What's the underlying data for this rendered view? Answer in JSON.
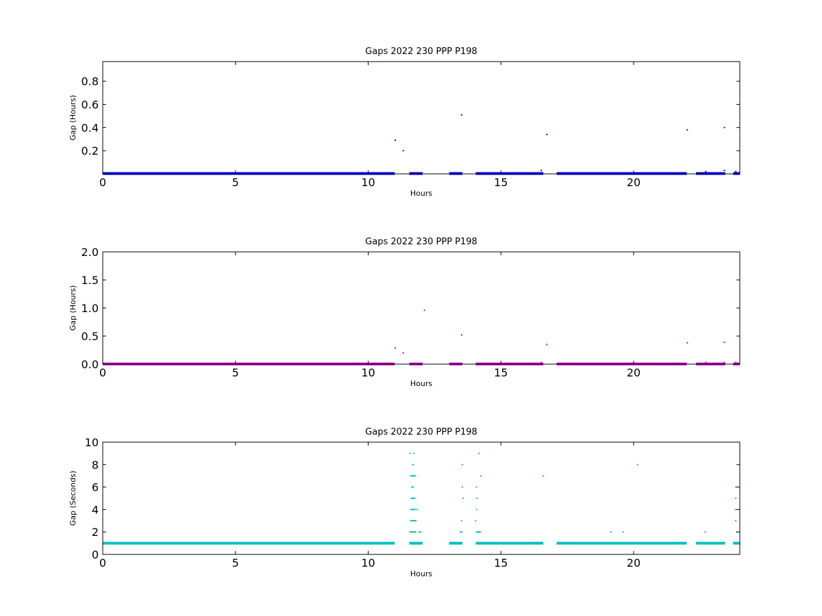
{
  "chart_data": [
    {
      "type": "scatter",
      "title": "Gaps 2022 230 PPP  P198",
      "xlabel": "Hours",
      "ylabel": "Gap (Hours)",
      "xlim": [
        0,
        24
      ],
      "ylim": [
        0,
        0.97
      ],
      "xticks": [
        0,
        5,
        10,
        15,
        20
      ],
      "yticks": [
        0.2,
        0.4,
        0.6,
        0.8
      ],
      "xtick_labels": [
        "0",
        "5",
        "10",
        "15",
        "20"
      ],
      "ytick_labels": [
        "0.2",
        "0.4",
        "0.6",
        "0.8"
      ],
      "grid": false,
      "series": [
        {
          "color": "#0000ff",
          "baseline_value": 0.003,
          "baseline_ranges": [
            [
              0,
              11.0
            ],
            [
              11.55,
              12.05
            ],
            [
              13.05,
              13.55
            ],
            [
              14.05,
              16.6
            ],
            [
              17.1,
              22.0
            ],
            [
              22.35,
              23.45
            ],
            [
              23.75,
              24.0
            ]
          ],
          "points": [
            [
              11.02,
              0.29
            ],
            [
              11.32,
              0.2
            ],
            [
              13.52,
              0.51
            ],
            [
              16.52,
              0.03
            ],
            [
              16.73,
              0.34
            ],
            [
              22.02,
              0.38
            ],
            [
              22.72,
              0.02
            ],
            [
              23.42,
              0.4
            ],
            [
              23.42,
              0.03
            ],
            [
              23.85,
              0.02
            ]
          ]
        }
      ]
    },
    {
      "type": "scatter",
      "title": "Gaps 2022 230 PPP  P198",
      "xlabel": "Hours",
      "ylabel": "Gap (Hours)",
      "xlim": [
        0,
        24
      ],
      "ylim": [
        0,
        2.0
      ],
      "xticks": [
        0,
        5,
        10,
        15,
        20
      ],
      "yticks": [
        0.0,
        0.5,
        1.0,
        1.5,
        2.0
      ],
      "xtick_labels": [
        "0",
        "5",
        "10",
        "15",
        "20"
      ],
      "ytick_labels": [
        "0.0",
        "0.5",
        "1.0",
        "1.5",
        "2.0"
      ],
      "grid": false,
      "series": [
        {
          "color": "#bf00bf",
          "baseline_value": 0.003,
          "baseline_ranges": [
            [
              0,
              11.0
            ],
            [
              11.55,
              12.05
            ],
            [
              13.05,
              13.55
            ],
            [
              14.05,
              16.6
            ],
            [
              17.1,
              22.0
            ],
            [
              22.35,
              23.45
            ],
            [
              23.75,
              24.0
            ]
          ],
          "points": [
            [
              11.02,
              0.29
            ],
            [
              11.32,
              0.2
            ],
            [
              12.12,
              0.96
            ],
            [
              13.52,
              0.52
            ],
            [
              16.52,
              0.03
            ],
            [
              16.73,
              0.35
            ],
            [
              22.02,
              0.38
            ],
            [
              22.72,
              0.03
            ],
            [
              23.42,
              0.39
            ],
            [
              23.42,
              0.03
            ],
            [
              23.85,
              0.03
            ]
          ]
        }
      ]
    },
    {
      "type": "scatter",
      "title": "Gaps 2022 230 PPP  P198",
      "xlabel": "Hours",
      "ylabel": "Gap (Seconds)",
      "xlim": [
        0,
        24
      ],
      "ylim": [
        0,
        10
      ],
      "xticks": [
        0,
        5,
        10,
        15,
        20
      ],
      "yticks": [
        0,
        2,
        4,
        6,
        8,
        10
      ],
      "xtick_labels": [
        "0",
        "5",
        "10",
        "15",
        "20"
      ],
      "ytick_labels": [
        "0",
        "2",
        "4",
        "6",
        "8",
        "10"
      ],
      "grid": false,
      "series": [
        {
          "color": "#00bfbf",
          "baseline_value": 1,
          "baseline_ranges": [
            [
              0,
              11.0
            ],
            [
              11.55,
              12.05
            ],
            [
              13.05,
              13.55
            ],
            [
              14.05,
              16.6
            ],
            [
              17.1,
              22.0
            ],
            [
              22.35,
              23.45
            ],
            [
              23.75,
              24.0
            ]
          ],
          "segments": [
            [
              11.55,
              11.82,
              2
            ],
            [
              11.58,
              11.82,
              3
            ],
            [
              11.58,
              11.8,
              4
            ],
            [
              11.6,
              11.78,
              5
            ],
            [
              11.62,
              11.72,
              6
            ],
            [
              11.58,
              11.8,
              7
            ],
            [
              11.65,
              11.72,
              8
            ],
            [
              11.9,
              12.0,
              2
            ],
            [
              13.45,
              13.55,
              2
            ],
            [
              14.05,
              14.25,
              2
            ]
          ],
          "points": [
            [
              11.58,
              9
            ],
            [
              11.72,
              9
            ],
            [
              11.85,
              4
            ],
            [
              13.55,
              8
            ],
            [
              13.55,
              6
            ],
            [
              13.58,
              5
            ],
            [
              13.52,
              3
            ],
            [
              14.08,
              6
            ],
            [
              14.1,
              5
            ],
            [
              14.08,
              4
            ],
            [
              14.05,
              3
            ],
            [
              14.18,
              9
            ],
            [
              14.25,
              7
            ],
            [
              16.6,
              7
            ],
            [
              19.15,
              2
            ],
            [
              19.6,
              2
            ],
            [
              20.15,
              8
            ],
            [
              22.7,
              2
            ],
            [
              23.85,
              6
            ],
            [
              23.85,
              5
            ],
            [
              23.85,
              4
            ],
            [
              23.85,
              3
            ],
            [
              23.88,
              2
            ]
          ]
        }
      ]
    }
  ]
}
